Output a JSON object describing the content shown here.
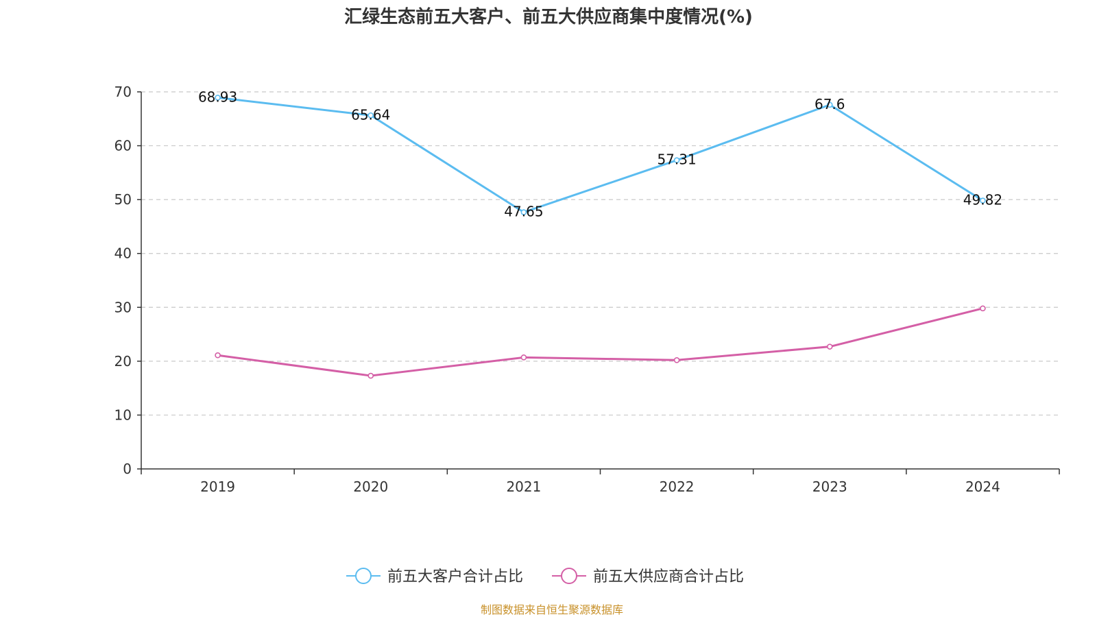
{
  "chart_data": {
    "type": "line",
    "title": "汇绿生态前五大客户、前五大供应商集中度情况(%)",
    "categories": [
      "2019",
      "2020",
      "2021",
      "2022",
      "2023",
      "2024"
    ],
    "ylim": [
      0,
      70
    ],
    "yticks": [
      0,
      10,
      20,
      30,
      40,
      50,
      60,
      70
    ],
    "grid": true,
    "legend_position": "bottom-center",
    "series": [
      {
        "name": "前五大客户合计占比",
        "color": "#5bbcf0",
        "values": [
          68.93,
          65.64,
          47.65,
          57.31,
          67.6,
          49.82
        ],
        "labels": [
          "68.93",
          "65.64",
          "47.65",
          "57.31",
          "67.6",
          "49.82"
        ],
        "show_labels": true
      },
      {
        "name": "前五大供应商合计占比",
        "color": "#d45fa6",
        "values": [
          21.1,
          17.3,
          20.7,
          20.2,
          22.7,
          29.8
        ],
        "show_labels": false
      }
    ],
    "source": "制图数据来自恒生聚源数据库"
  }
}
